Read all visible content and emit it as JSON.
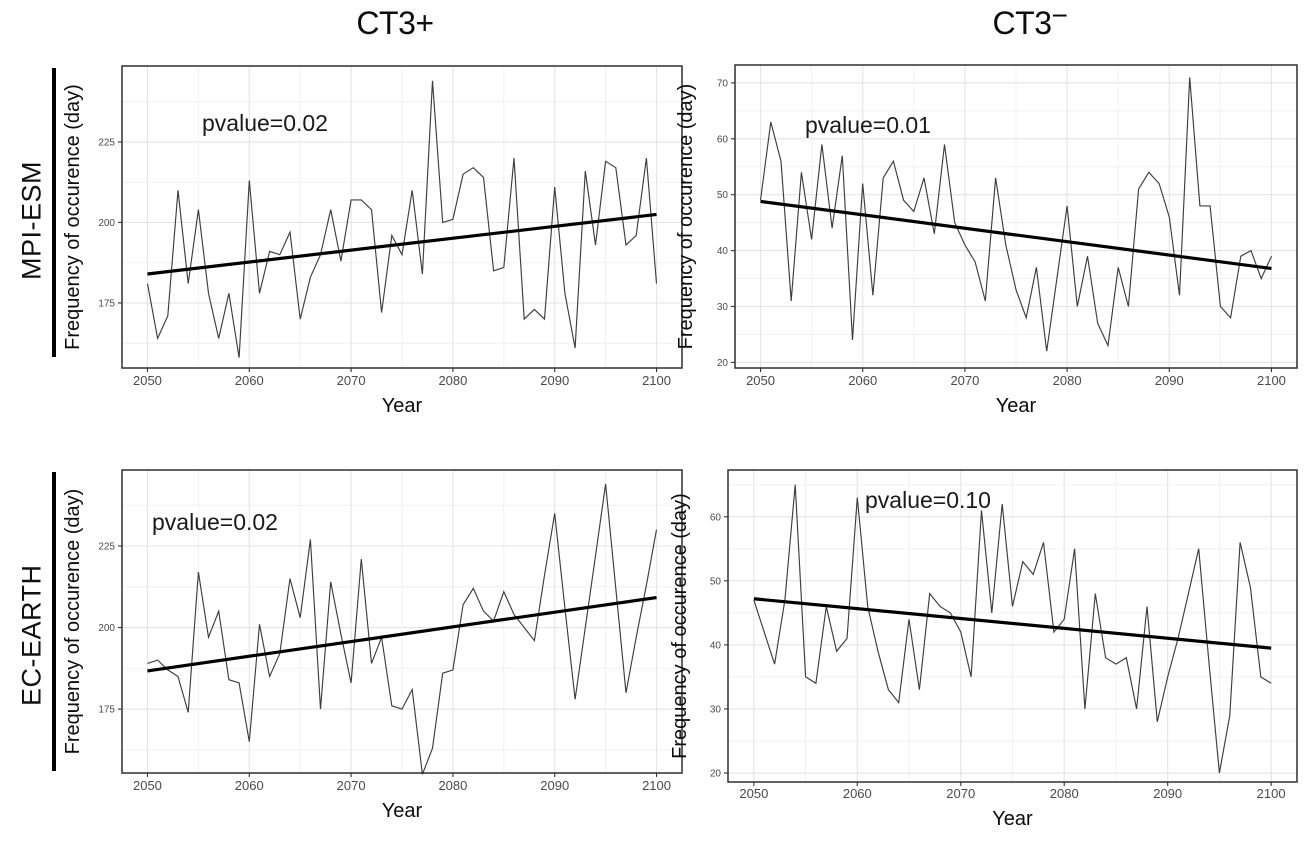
{
  "figure": {
    "col_titles": {
      "left": "CT3+",
      "right_base": "CT3",
      "right_sign": "−"
    },
    "row_labels": [
      "MPI-ESM",
      "EC-EARTH"
    ],
    "colors": {
      "background": "#ffffff",
      "data_line": "#3d3d3d",
      "trend_line": "#000000",
      "panel_border": "#2f2f2f",
      "grid_major": "#e4e4e4",
      "grid_minor": "#f1f1f1",
      "tick_label": "#4a4a4a",
      "axis_title": "#0c0c0c",
      "annotation": "#1a1a1a"
    }
  },
  "chart_data": [
    {
      "id": "mpi-esm-ct3-plus",
      "type": "line",
      "row": "MPI-ESM",
      "column": "CT3+",
      "xlabel": "Year",
      "ylabel": "Frequency of occurence (day)",
      "annotation": "pvalue=0.02",
      "grid": true,
      "legend": null,
      "x_start": 2050,
      "x_step": 1,
      "xlim": [
        2047.5,
        2102.5
      ],
      "ylim": [
        154.8,
        248.6
      ],
      "xticks": [
        2050,
        2060,
        2070,
        2080,
        2090,
        2100
      ],
      "yticks": [
        175,
        200,
        225
      ],
      "values": [
        181,
        164,
        171,
        210,
        181,
        204,
        178,
        164,
        178,
        158,
        213,
        178,
        191,
        190,
        197,
        170,
        183,
        190,
        204,
        188,
        207,
        207,
        204,
        172,
        196,
        190,
        210,
        184,
        244,
        200,
        201,
        215,
        217,
        214,
        185,
        186,
        220,
        170,
        173,
        170,
        211,
        178,
        161,
        216,
        193,
        219,
        217,
        193,
        196,
        220,
        181
      ],
      "trend": {
        "x": [
          2050,
          2100
        ],
        "y": [
          184,
          202.5
        ]
      }
    },
    {
      "id": "mpi-esm-ct3-minus",
      "type": "line",
      "row": "MPI-ESM",
      "column": "CT3-",
      "xlabel": "Year",
      "ylabel": "Frequency of occurence (day)",
      "annotation": "pvalue=0.01",
      "grid": true,
      "legend": null,
      "x_start": 2050,
      "x_step": 1,
      "xlim": [
        2047.5,
        2102.5
      ],
      "ylim": [
        19.0,
        73.2
      ],
      "xticks": [
        2050,
        2060,
        2070,
        2080,
        2090,
        2100
      ],
      "yticks": [
        20,
        30,
        40,
        50,
        60,
        70
      ],
      "values": [
        49,
        63,
        56,
        31,
        54,
        42,
        59,
        44,
        57,
        24,
        52,
        32,
        53,
        56,
        49,
        47,
        53,
        43,
        59,
        45,
        41,
        38,
        31,
        53,
        41,
        33,
        28,
        37,
        22,
        35,
        48,
        30,
        39,
        27,
        23,
        37,
        30,
        51,
        54,
        52,
        46,
        32,
        71,
        48,
        48,
        30,
        28,
        39,
        40,
        35,
        39
      ],
      "trend": {
        "x": [
          2050,
          2100
        ],
        "y": [
          48.8,
          36.8
        ]
      }
    },
    {
      "id": "ec-earth-ct3-plus",
      "type": "line",
      "row": "EC-EARTH",
      "column": "CT3+",
      "xlabel": "Year",
      "ylabel": "Frequency of occurence (day)",
      "annotation": "pvalue=0.02",
      "grid": true,
      "legend": null,
      "x_start": 2050,
      "x_step": 1,
      "xlim": [
        2047.5,
        2102.5
      ],
      "ylim": [
        155.4,
        248.3
      ],
      "xticks": [
        2050,
        2060,
        2070,
        2080,
        2090,
        2100
      ],
      "yticks": [
        175,
        200,
        225
      ],
      "values": [
        189,
        190,
        187,
        185,
        174,
        217,
        197,
        205,
        184,
        183,
        165,
        201,
        185,
        192,
        215,
        203,
        227,
        175,
        214,
        198,
        183,
        221,
        189,
        197,
        176,
        175,
        181,
        155,
        163,
        186,
        187,
        207,
        212,
        205,
        202,
        211,
        204,
        200,
        196,
        216,
        235,
        206,
        178,
        200,
        222,
        244,
        212,
        180,
        197,
        213,
        230
      ],
      "trend": {
        "x": [
          2050,
          2100
        ],
        "y": [
          186.7,
          209.2
        ]
      }
    },
    {
      "id": "ec-earth-ct3-minus",
      "type": "line",
      "row": "EC-EARTH",
      "column": "CT3-",
      "xlabel": "Year",
      "ylabel": "Frequency of occurence (day)",
      "annotation": "pvalue=0.10",
      "grid": true,
      "legend": null,
      "x_start": 2050,
      "x_step": 1,
      "xlim": [
        2047.5,
        2102.5
      ],
      "ylim": [
        18.6,
        67.3
      ],
      "xticks": [
        2050,
        2060,
        2070,
        2080,
        2090,
        2100
      ],
      "yticks": [
        20,
        30,
        40,
        50,
        60
      ],
      "values": [
        47,
        42,
        37,
        47,
        65,
        35,
        34,
        46,
        39,
        41,
        63,
        46,
        39,
        33,
        31,
        44,
        33,
        48,
        46,
        45,
        42,
        35,
        61,
        45,
        62,
        46,
        53,
        51,
        56,
        42,
        44,
        55,
        30,
        48,
        38,
        37,
        38,
        30,
        46,
        28,
        35,
        41,
        48,
        55,
        37,
        20,
        29,
        56,
        49,
        35,
        34
      ],
      "trend": {
        "x": [
          2050,
          2100
        ],
        "y": [
          47.2,
          39.5
        ]
      }
    }
  ]
}
